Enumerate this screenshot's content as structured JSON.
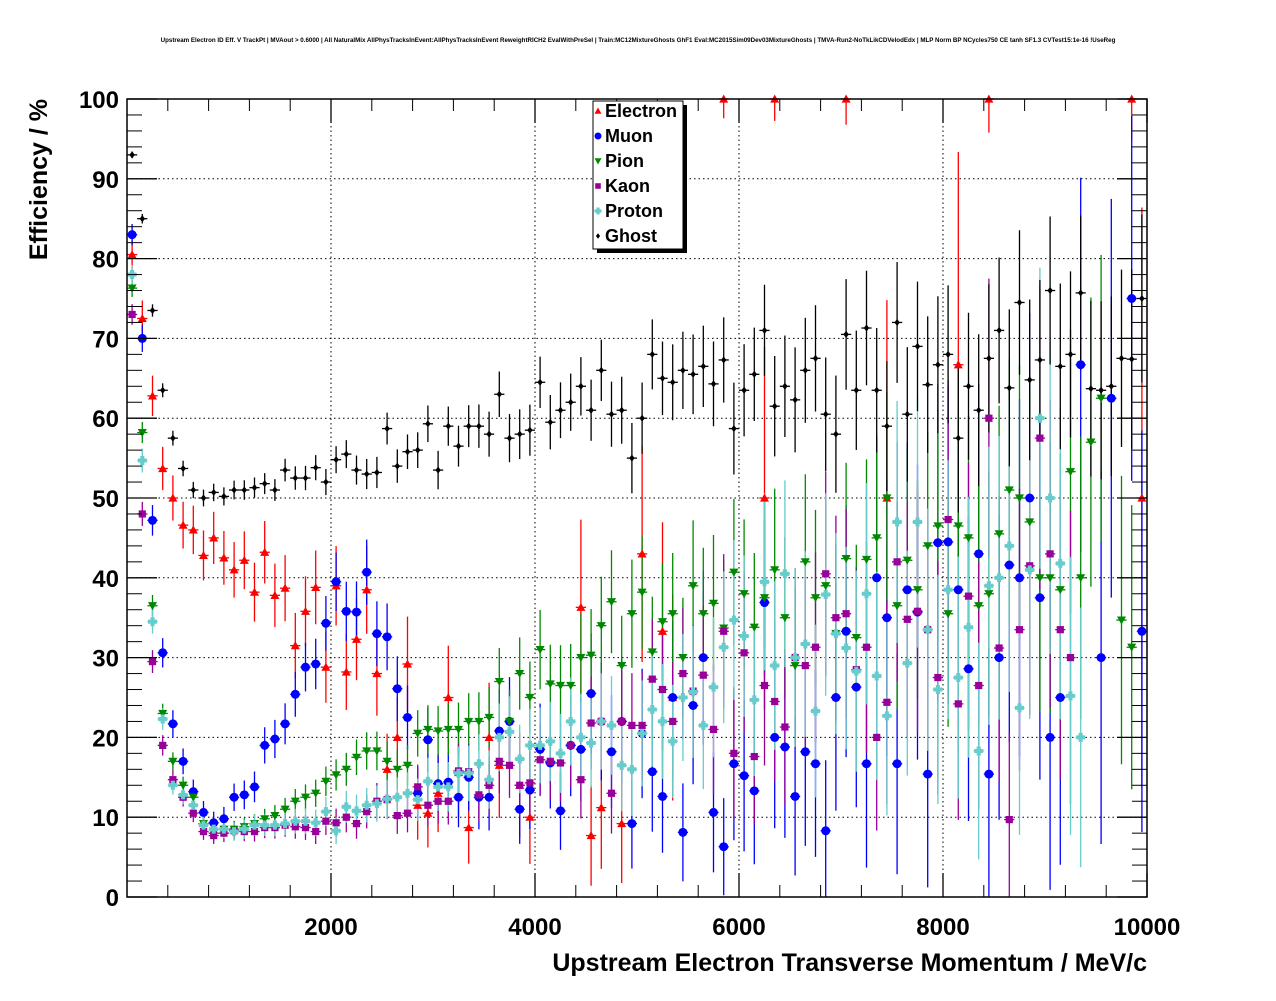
{
  "chart_data": {
    "type": "scatter",
    "title": "Upstream Electron ID Eff. V TrackPt | MVAout > 0.6000 | All NaturalMix AllPhysTracksInEvent:AllPhysTracksInEvent ReweightRICH2 EvalWithPreSel | Train:MC12MixtureGhosts GhF1 Eval:MC2015Sim09Dev03MixtureGhosts | TMVA-Run2-NoTkLikCDVelodEdx | MLP Norm BP NCycles750 CE tanh SF1.3 CVTest15:1e-16 !UseReg",
    "xlabel": "Upstream Electron Transverse Momentum / MeV/c",
    "ylabel": "Efficiency / %",
    "xlim": [
      0,
      10000
    ],
    "ylim": [
      0,
      100
    ],
    "bin_width": 100,
    "x_tick_labels": [
      "2000",
      "4000",
      "6000",
      "8000",
      "10000"
    ],
    "y_tick_labels": [
      "0",
      "10",
      "20",
      "30",
      "40",
      "50",
      "60",
      "70",
      "80",
      "90",
      "100"
    ],
    "grid": true,
    "legend_placement": "top-center",
    "series": [
      {
        "name": "Electron",
        "color": "#ff0000",
        "marker": "triangle-up",
        "values": [
          80.5,
          72.5,
          62.8,
          53.7,
          50,
          46.6,
          46,
          42.8,
          45,
          42.5,
          41,
          42.2,
          38.2,
          43.2,
          37.8,
          38.7,
          31.5,
          35.8,
          38.8,
          28.8,
          39,
          28.2,
          32.3,
          38.5,
          28,
          16,
          20,
          29.2,
          11.5,
          10.5,
          13,
          25,
          15.6,
          8.7,
          null,
          20,
          16.5,
          null,
          14,
          10,
          null,
          null,
          null,
          null,
          36.3,
          7.7,
          11.2,
          null,
          9.2,
          null,
          43,
          null,
          33.3,
          25,
          null,
          null,
          null,
          null,
          100,
          null,
          null,
          null,
          50,
          100,
          null,
          null,
          null,
          null,
          null,
          null,
          100,
          null,
          null,
          null,
          50,
          null,
          null,
          null,
          null,
          null,
          null,
          66.7,
          null,
          null,
          100,
          null,
          null,
          null,
          null,
          null,
          null,
          null,
          null,
          null,
          null,
          null,
          null,
          null,
          100,
          50
        ]
      },
      {
        "name": "Muon",
        "color": "#0000ff",
        "marker": "circle",
        "values": [
          83,
          70,
          47.2,
          30.6,
          21.7,
          17,
          13.2,
          10.6,
          9.3,
          9.8,
          12.5,
          12.8,
          13.8,
          19,
          19.8,
          21.7,
          25.4,
          28.8,
          29.2,
          34.3,
          39.5,
          35.8,
          35.7,
          40.7,
          33,
          32.6,
          26.1,
          22.5,
          13,
          19.7,
          14.2,
          14.4,
          12.5,
          15,
          12.5,
          12.5,
          20.8,
          22,
          11,
          13.4,
          18.5,
          16.8,
          10.8,
          19,
          18.5,
          25.5,
          22,
          18.2,
          22,
          9.2,
          20.5,
          15.7,
          12.6,
          25,
          8.1,
          24,
          30,
          10.6,
          6.3,
          16.7,
          15.2,
          13.3,
          36.9,
          20,
          18.8,
          12.6,
          18.2,
          16.7,
          8.3,
          25,
          33.3,
          26.3,
          16.7,
          40,
          35,
          16.7,
          38.5,
          35.7,
          15.4,
          44.4,
          44.5,
          38.5,
          28.6,
          43,
          15.4,
          30,
          41.6,
          40,
          50,
          37.5,
          20,
          25,
          null,
          66.7,
          null,
          30,
          62.5,
          null,
          75,
          33.3
        ]
      },
      {
        "name": "Pion",
        "color": "#008800",
        "marker": "triangle-down",
        "values": [
          76.3,
          58.2,
          36.5,
          23,
          17,
          14,
          12.5,
          9.2,
          8,
          8.5,
          8.5,
          8.8,
          9.2,
          9.8,
          10.2,
          11,
          12,
          12.5,
          13,
          14.5,
          15.3,
          16,
          17.5,
          18.3,
          18.3,
          17,
          16,
          16.5,
          20.5,
          21,
          20.8,
          21,
          21,
          22,
          22,
          22.5,
          27,
          22,
          28,
          25,
          31,
          26.7,
          26.5,
          26.5,
          30,
          30.3,
          34,
          37,
          29,
          35.5,
          38.2,
          30.7,
          34.5,
          35.5,
          30,
          39,
          35.5,
          36.8,
          33.7,
          40.7,
          38,
          33.8,
          37.5,
          41,
          35,
          29,
          42,
          37.5,
          39,
          33,
          42.4,
          32.5,
          42.3,
          45,
          50,
          36.5,
          42.2,
          38.5,
          44,
          46.5,
          35.5,
          46.5,
          45,
          36.5,
          38,
          45.5,
          51,
          50,
          47,
          40,
          40,
          38.5,
          53.3,
          40,
          57,
          62.5,
          null,
          34.7,
          31.3,
          null
        ]
      },
      {
        "name": "Kaon",
        "color": "#990099",
        "marker": "square",
        "values": [
          73,
          48,
          29.5,
          19,
          14.7,
          12.5,
          10.5,
          8.2,
          7.7,
          8,
          8.3,
          8.2,
          8.2,
          8.7,
          8.7,
          9,
          8.8,
          8.7,
          8.2,
          9.5,
          9.3,
          10,
          9.2,
          10.7,
          12,
          12.2,
          10.2,
          10.5,
          13.8,
          11.5,
          12,
          12,
          15.8,
          15.7,
          12.8,
          14,
          17,
          16.5,
          14,
          14.3,
          17.2,
          17,
          16.8,
          19,
          14.7,
          21.8,
          22,
          13,
          22,
          21.5,
          21.5,
          27.3,
          26,
          22,
          28,
          25.8,
          27.8,
          21,
          33.3,
          18,
          30.6,
          17.6,
          26.5,
          24.5,
          21.3,
          30,
          29,
          31.3,
          40.5,
          35,
          35.5,
          28.5,
          31.3,
          20,
          24.4,
          42,
          34.8,
          35.8,
          33.5,
          27.5,
          47.3,
          24.2,
          37.7,
          26.5,
          60,
          31.2,
          9.7,
          33.5,
          41.5,
          57.5,
          43,
          33.5,
          30,
          null,
          null,
          null,
          null,
          null,
          null,
          null
        ]
      },
      {
        "name": "Proton",
        "color": "#66cccc",
        "marker": "cross",
        "values": [
          78,
          54.7,
          34.5,
          22.3,
          14,
          12.8,
          11.5,
          9,
          8.5,
          8.5,
          8.2,
          8.5,
          9,
          9,
          9,
          9.2,
          9.5,
          9.5,
          9.3,
          10.7,
          8.3,
          11.3,
          10.8,
          11.5,
          11.7,
          12.3,
          12.5,
          13,
          12.2,
          14.5,
          13.8,
          13.8,
          15.5,
          15.5,
          16.7,
          14.7,
          20,
          20.7,
          17.3,
          19,
          19,
          19.5,
          18,
          22,
          20,
          19.3,
          22,
          21.5,
          16.5,
          16,
          20.5,
          23.5,
          22,
          19.5,
          25,
          25.7,
          21.5,
          26.3,
          31.3,
          34.7,
          32.7,
          24.7,
          39.5,
          29,
          40.5,
          30,
          31.7,
          23.3,
          37.9,
          33,
          31.2,
          28.3,
          38,
          27.7,
          22.7,
          47,
          29.3,
          47,
          33.5,
          26,
          38.5,
          27.5,
          33.8,
          18.3,
          39,
          40,
          44,
          23.7,
          41,
          60,
          50,
          41.8,
          25.2,
          20,
          null,
          null,
          null,
          null,
          null,
          null
        ]
      },
      {
        "name": "Ghost",
        "color": "#000000",
        "marker": "diamond",
        "values": [
          93,
          85,
          73.5,
          63.5,
          57.5,
          53.7,
          51,
          50,
          50.7,
          50.2,
          51,
          51,
          51.3,
          51.8,
          51,
          53.5,
          52.5,
          52.5,
          53.8,
          52,
          54.8,
          55.5,
          53.5,
          53,
          53.2,
          58.7,
          54,
          55.8,
          56,
          59.3,
          53.5,
          59,
          56.5,
          59,
          59,
          58,
          63,
          57.5,
          58,
          58.5,
          64.5,
          59.5,
          61,
          62,
          64,
          61,
          66,
          60.5,
          61,
          55,
          60,
          68,
          65,
          64.5,
          66,
          65.5,
          66.5,
          64.3,
          67.3,
          58.7,
          63.5,
          65.5,
          71,
          61.5,
          64,
          62.3,
          66,
          67.5,
          60.5,
          58,
          70.5,
          63.5,
          71.3,
          63.5,
          59,
          72,
          60.5,
          69,
          64.2,
          66.7,
          68,
          57.5,
          64,
          61,
          67.5,
          71,
          63.8,
          74.5,
          64.8,
          67.3,
          76,
          66.5,
          68,
          75.7,
          63.7,
          63.5,
          64,
          67.5,
          67.4,
          75
        ]
      }
    ]
  }
}
